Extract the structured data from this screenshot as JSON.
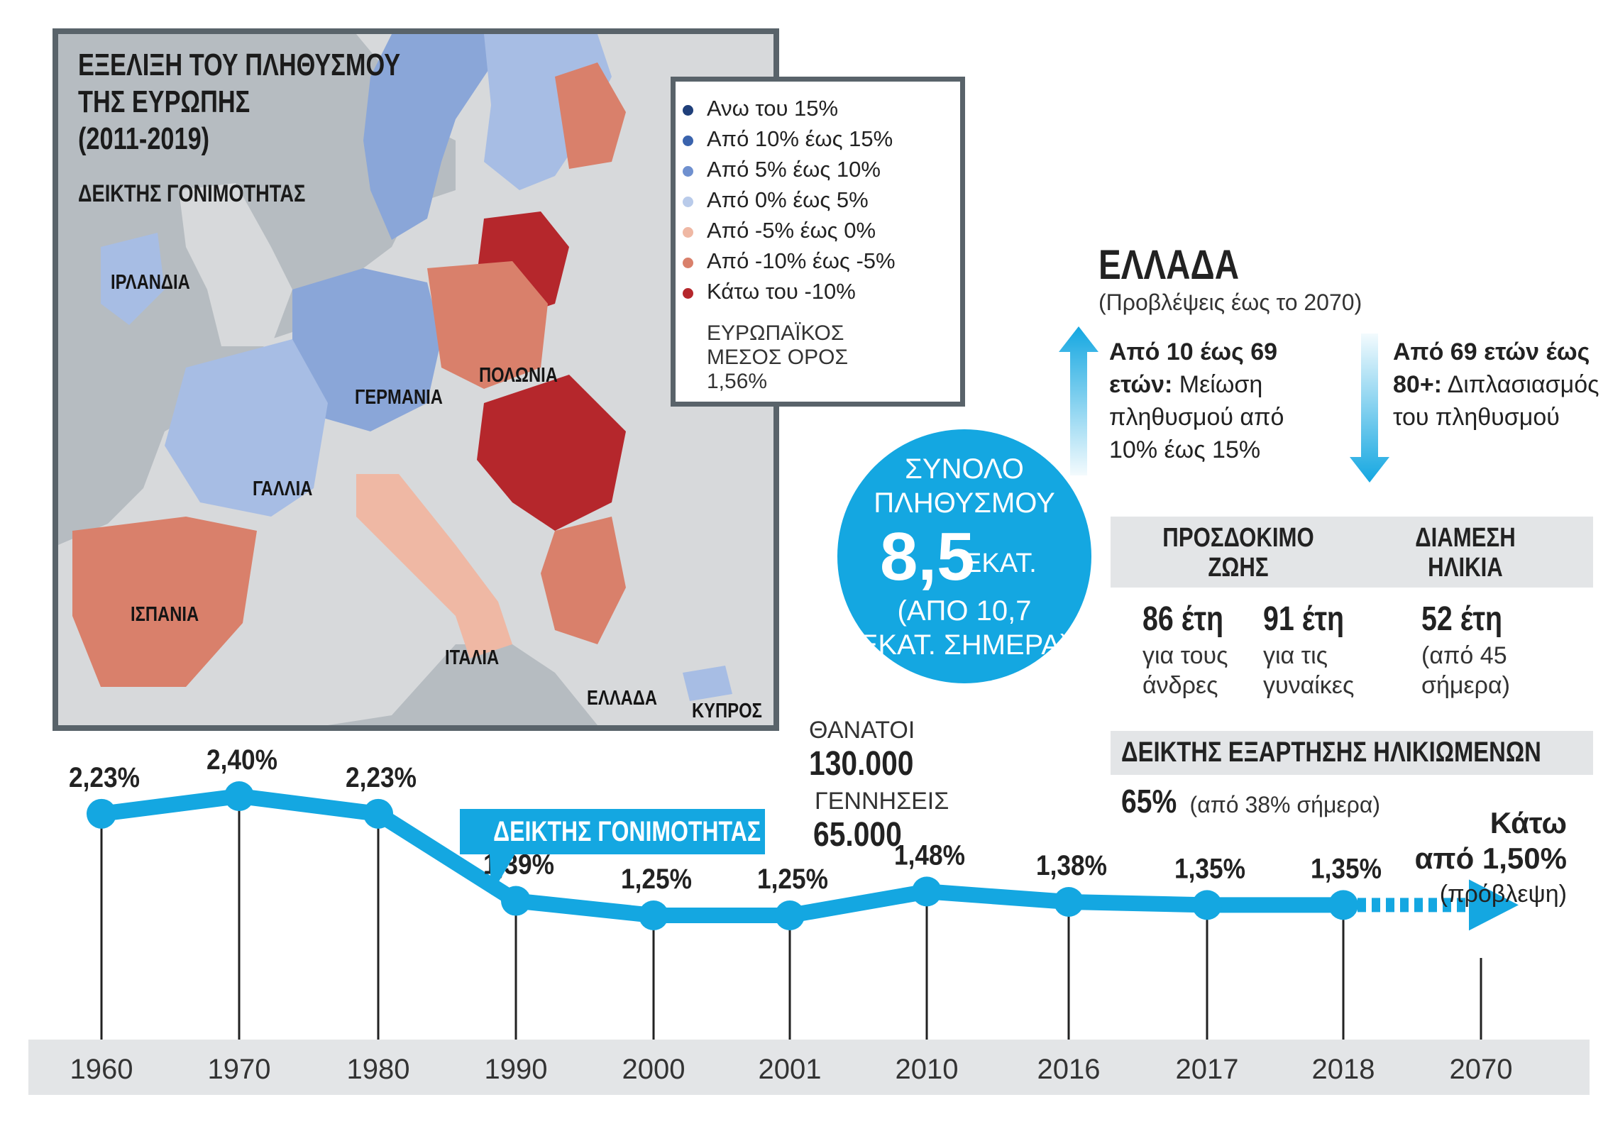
{
  "map": {
    "title_lines": [
      "ΕΞΕΛΙΞΗ ΤΟΥ ΠΛΗΘΥΣΜΟΥ",
      "ΤΗΣ ΕΥΡΩΠΗΣ",
      "(2011-2019)"
    ],
    "subtitle": "ΔΕΙΚΤΗΣ ΓΟΝΙΜΟΤΗΤΑΣ",
    "countries": [
      "ΙΡΛΑΝΔΙΑ",
      "ΓΕΡΜΑΝΙΑ",
      "ΠΟΛΩΝΙΑ",
      "ΓΑΛΛΙΑ",
      "ΙΣΠΑΝΙΑ",
      "ΙΤΑΛΙΑ",
      "ΕΛΛΑΔΑ",
      "ΚΥΠΡΟΣ"
    ]
  },
  "legend": {
    "items": [
      {
        "label": "Ανω του 15%",
        "color": "#1f3f7a"
      },
      {
        "label": "Από 10% έως 15%",
        "color": "#3a63ad"
      },
      {
        "label": "Από 5% έως 10%",
        "color": "#6f90cf"
      },
      {
        "label": "Από 0% έως 5%",
        "color": "#b9cbea"
      },
      {
        "label": "Από -5% έως 0%",
        "color": "#efb8a4"
      },
      {
        "label": "Από -10% έως -5%",
        "color": "#d9806b"
      },
      {
        "label": "Κάτω του -10%",
        "color": "#b5272c"
      }
    ],
    "avg_lines": [
      "ΕΥΡΩΠΑΪΚΟΣ",
      "ΜΕΣΟΣ ΟΡΟΣ",
      "1,56%"
    ]
  },
  "greece": {
    "title": "ΕΛΛΑΔΑ",
    "subtitle": "(Προβλέψεις έως το 2070)",
    "up_text": {
      "bold": "Από 10 έως 69 ετών:",
      "rest": "Μείωση πληθυσμού από 10% έως 15%"
    },
    "down_text": {
      "bold": "Από 69 ετών έως 80+:",
      "rest": "Διπλασιασμός του πληθυσμού"
    }
  },
  "population": {
    "line1": "ΣΥΝΟΛΟ",
    "line2": "ΠΛΗΘΥΣΜΟΥ",
    "value": "8,5",
    "unit": "ΕΚΑΤ.",
    "note1": "(ΑΠΟ 10,7",
    "note2": "ΕΚΑΤ. ΣΗΜΕΡΑ)"
  },
  "stats": {
    "life_head_1": "ΠΡΟΣΔΟΚΙΜΟ",
    "life_head_2": "ΖΩΗΣ",
    "median_head_1": "ΔΙΑΜΕΣΗ",
    "median_head_2": "ΗΛΙΚΙΑ",
    "men_value": "86 έτη",
    "men_l1": "για τους",
    "men_l2": "άνδρες",
    "women_value": "91 έτη",
    "women_l1": "για τις",
    "women_l2": "γυναίκες",
    "median_value": "52 έτη",
    "median_l1": "(από 45",
    "median_l2": "σήμερα)",
    "dependency_head": "ΔΕΙΚΤΗΣ ΕΞΑΡΤΗΣΗΣ ΗΛΙΚΙΩΜΕΝΩΝ",
    "dependency_value": "65%",
    "dependency_note": "(από 38% σήμερα)"
  },
  "vital": {
    "deaths_label": "ΘΑΝΑΤΟΙ",
    "deaths_value": "130.000",
    "births_label": "ΓΕΝΝΗΣΕΙΣ",
    "births_value": "65.000"
  },
  "forecast": {
    "line1": "Κάτω",
    "line2": "από 1,50%",
    "line3": "(πρόβλεψη)"
  },
  "colors": {
    "accent": "#14a7e1",
    "axis_band": "#e3e5e7",
    "frame": "#59636a"
  },
  "chart_data": {
    "type": "line",
    "title": "ΔΕΙΚΤΗΣ ΓΟΝΙΜΟΤΗΤΑΣ",
    "categories": [
      "1960",
      "1970",
      "1980",
      "1990",
      "2000",
      "2001",
      "2010",
      "2016",
      "2017",
      "2018",
      "2070"
    ],
    "values": [
      2.23,
      2.4,
      2.23,
      1.39,
      1.25,
      1.25,
      1.48,
      1.38,
      1.35,
      1.35,
      null
    ],
    "labels": [
      "2,23%",
      "2,40%",
      "2,23%",
      "1,39%",
      "1,25%",
      "1,25%",
      "1,48%",
      "1,38%",
      "1,35%",
      "1,35%",
      ""
    ],
    "forecast": {
      "category": "2070",
      "label": "Κάτω από 1,50%",
      "note": "(πρόβλεψη)"
    },
    "ylim": [
      1.2,
      2.45
    ],
    "xlabel": "",
    "ylabel": ""
  }
}
